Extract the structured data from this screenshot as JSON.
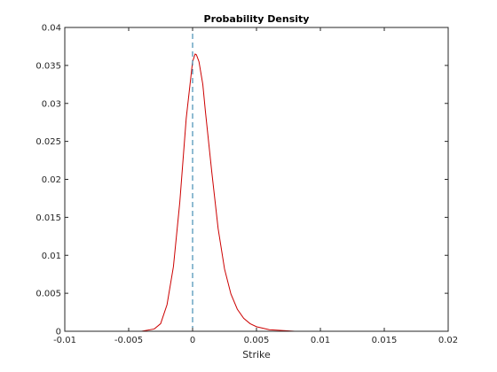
{
  "chart_data": {
    "type": "line",
    "title": "Probability Density",
    "xlabel": "Strike",
    "ylabel": "",
    "xlim": [
      -0.01,
      0.02
    ],
    "ylim": [
      0,
      0.04
    ],
    "x_ticks": [
      "-0.01",
      "-0.005",
      "0",
      "0.005",
      "0.01",
      "0.015",
      "0.02"
    ],
    "y_ticks": [
      "0",
      "0.005",
      "0.01",
      "0.015",
      "0.02",
      "0.025",
      "0.03",
      "0.035",
      "0.04"
    ],
    "grid": false,
    "series": [
      {
        "color": "#cc0000",
        "style": "solid",
        "x": [
          -0.006,
          -0.004,
          -0.003,
          -0.0025,
          -0.002,
          -0.0015,
          -0.001,
          -0.0005,
          0.0,
          0.0002,
          0.0003,
          0.0005,
          0.0008,
          0.001,
          0.0015,
          0.002,
          0.0025,
          0.003,
          0.0035,
          0.004,
          0.0045,
          0.005,
          0.006,
          0.007,
          0.008,
          0.01,
          0.013,
          0.016,
          0.02
        ],
        "y": [
          0.0,
          0.0,
          0.0003,
          0.001,
          0.0035,
          0.0085,
          0.017,
          0.028,
          0.0355,
          0.0365,
          0.0364,
          0.0355,
          0.0325,
          0.029,
          0.021,
          0.0135,
          0.0082,
          0.0049,
          0.0029,
          0.0017,
          0.001,
          0.0006,
          0.0002,
          0.0001,
          0.0,
          0.0,
          0.0,
          0.0,
          0.0
        ]
      },
      {
        "color": "#1f77a4",
        "style": "dashed",
        "x": [
          0,
          0
        ],
        "y": [
          0,
          0.04
        ]
      }
    ]
  }
}
